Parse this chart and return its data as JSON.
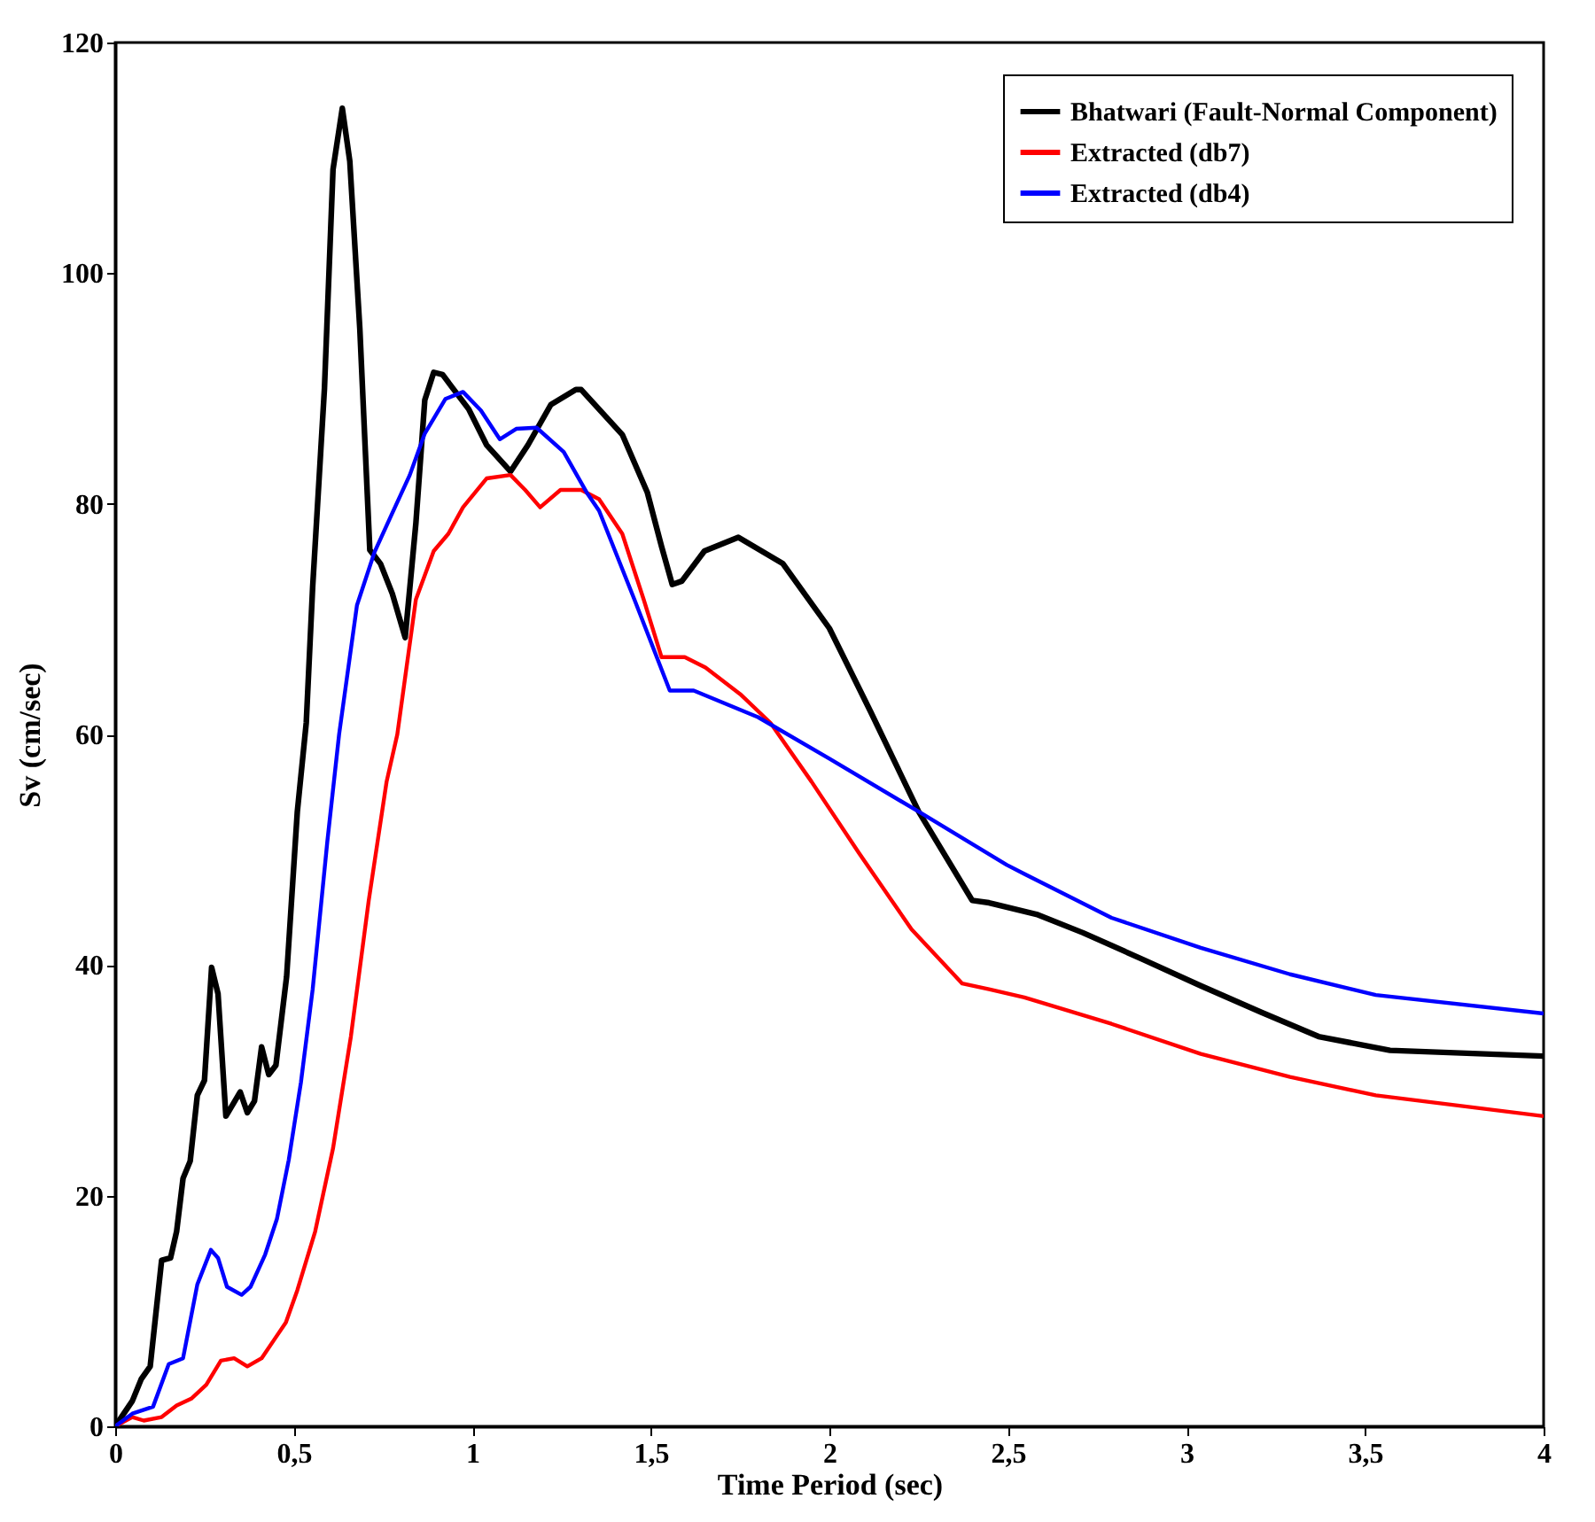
{
  "chart_data": {
    "type": "line",
    "xlabel": "Time Period (sec)",
    "ylabel": "Sv (cm/sec)",
    "xlim": [
      0,
      4
    ],
    "ylim": [
      0,
      120
    ],
    "xticks": [
      0,
      {
        "value": 0.5,
        "label": "0,5"
      },
      1,
      {
        "value": 1.5,
        "label": "1,5"
      },
      2,
      {
        "value": 2.5,
        "label": "2,5"
      },
      3,
      {
        "value": 3.5,
        "label": "3,5"
      },
      4
    ],
    "yticks": [
      0,
      20,
      40,
      60,
      80,
      100,
      120
    ],
    "grid": false,
    "legend": "top right",
    "marker": "none",
    "line_style": "solid",
    "series": [
      {
        "name": "Bhatwari (Fault-Normal Component)",
        "color": "#000000",
        "x": [
          0,
          0.048,
          0.073,
          0.098,
          0.13,
          0.155,
          0.172,
          0.19,
          0.21,
          0.23,
          0.25,
          0.27,
          0.288,
          0.31,
          0.35,
          0.37,
          0.39,
          0.41,
          0.43,
          0.45,
          0.48,
          0.51,
          0.535,
          0.553,
          0.586,
          0.61,
          0.636,
          0.657,
          0.685,
          0.713,
          0.743,
          0.776,
          0.812,
          0.842,
          0.867,
          0.892,
          0.917,
          0.941,
          0.99,
          1.04,
          1.107,
          1.156,
          1.22,
          1.29,
          1.305,
          1.42,
          1.49,
          1.53,
          1.56,
          1.587,
          1.65,
          1.745,
          1.87,
          2.0,
          2.115,
          2.25,
          2.4,
          2.447,
          2.58,
          2.71,
          2.877,
          3.04,
          3.21,
          3.37,
          3.57,
          4.0
        ],
        "values": [
          0,
          2.2,
          4.1,
          5.2,
          14.4,
          14.6,
          16.9,
          21.5,
          23,
          28.7,
          30,
          39.8,
          37.5,
          26.9,
          29,
          27.2,
          28.2,
          32.9,
          30.5,
          31.3,
          39,
          53.3,
          61,
          72.8,
          90,
          109,
          114.3,
          109.7,
          95.2,
          76,
          74.8,
          72.2,
          68.4,
          78.3,
          89,
          91.4,
          91.2,
          90.2,
          88.2,
          85.1,
          82.8,
          85.1,
          88.6,
          89.9,
          89.9,
          86,
          81,
          76.3,
          73,
          73.3,
          75.9,
          77.1,
          74.8,
          69.2,
          62,
          53.3,
          45.6,
          45.4,
          44.4,
          42.8,
          40.5,
          38.2,
          35.9,
          33.8,
          32.6,
          32.1
        ]
      },
      {
        "name": "Extracted (db7)",
        "color": "#ff0000",
        "x": [
          0,
          0.048,
          0.08,
          0.13,
          0.172,
          0.213,
          0.255,
          0.296,
          0.333,
          0.37,
          0.41,
          0.445,
          0.478,
          0.51,
          0.56,
          0.61,
          0.66,
          0.71,
          0.76,
          0.79,
          0.842,
          0.892,
          0.933,
          0.974,
          1.04,
          1.107,
          1.148,
          1.19,
          1.247,
          1.305,
          1.355,
          1.42,
          1.48,
          1.53,
          1.595,
          1.653,
          1.75,
          1.835,
          1.95,
          2.083,
          2.23,
          2.372,
          2.447,
          2.546,
          2.79,
          3.04,
          3.29,
          3.53,
          4.0
        ],
        "values": [
          0,
          0.8,
          0.5,
          0.8,
          1.8,
          2.4,
          3.6,
          5.7,
          5.9,
          5.2,
          5.9,
          7.5,
          9,
          11.8,
          16.9,
          24.1,
          33.8,
          45.6,
          55.9,
          60,
          71.7,
          75.9,
          77.4,
          79.7,
          82.2,
          82.5,
          81.2,
          79.7,
          81.2,
          81.2,
          80.4,
          77.4,
          71.7,
          66.7,
          66.7,
          65.8,
          63.5,
          61,
          55.9,
          49.7,
          43.1,
          38.4,
          37.9,
          37.2,
          34.9,
          32.3,
          30.3,
          28.7,
          26.9
        ]
      },
      {
        "name": "Extracted (db4)",
        "color": "#0000ff",
        "x": [
          0,
          0.048,
          0.106,
          0.15,
          0.19,
          0.23,
          0.268,
          0.288,
          0.313,
          0.354,
          0.379,
          0.42,
          0.453,
          0.486,
          0.52,
          0.553,
          0.594,
          0.627,
          0.677,
          0.726,
          0.776,
          0.825,
          0.867,
          0.925,
          0.974,
          1.024,
          1.077,
          1.123,
          1.18,
          1.256,
          1.32,
          1.355,
          1.454,
          1.553,
          1.62,
          1.8,
          2.0,
          2.25,
          2.496,
          2.546,
          2.79,
          3.04,
          3.29,
          3.53,
          4.0
        ],
        "values": [
          0,
          1.1,
          1.7,
          5.4,
          5.9,
          12.3,
          15.3,
          14.6,
          12.1,
          11.4,
          12.1,
          14.9,
          18,
          23.1,
          29.8,
          37.9,
          50.7,
          60,
          71.2,
          75.8,
          79.2,
          82.5,
          86.1,
          89.1,
          89.7,
          88.1,
          85.6,
          86.5,
          86.6,
          84.5,
          81,
          79.4,
          71.7,
          63.8,
          63.8,
          61.5,
          57.9,
          53.3,
          48.7,
          47.9,
          44.1,
          41.5,
          39.2,
          37.4,
          35.8
        ]
      }
    ]
  }
}
